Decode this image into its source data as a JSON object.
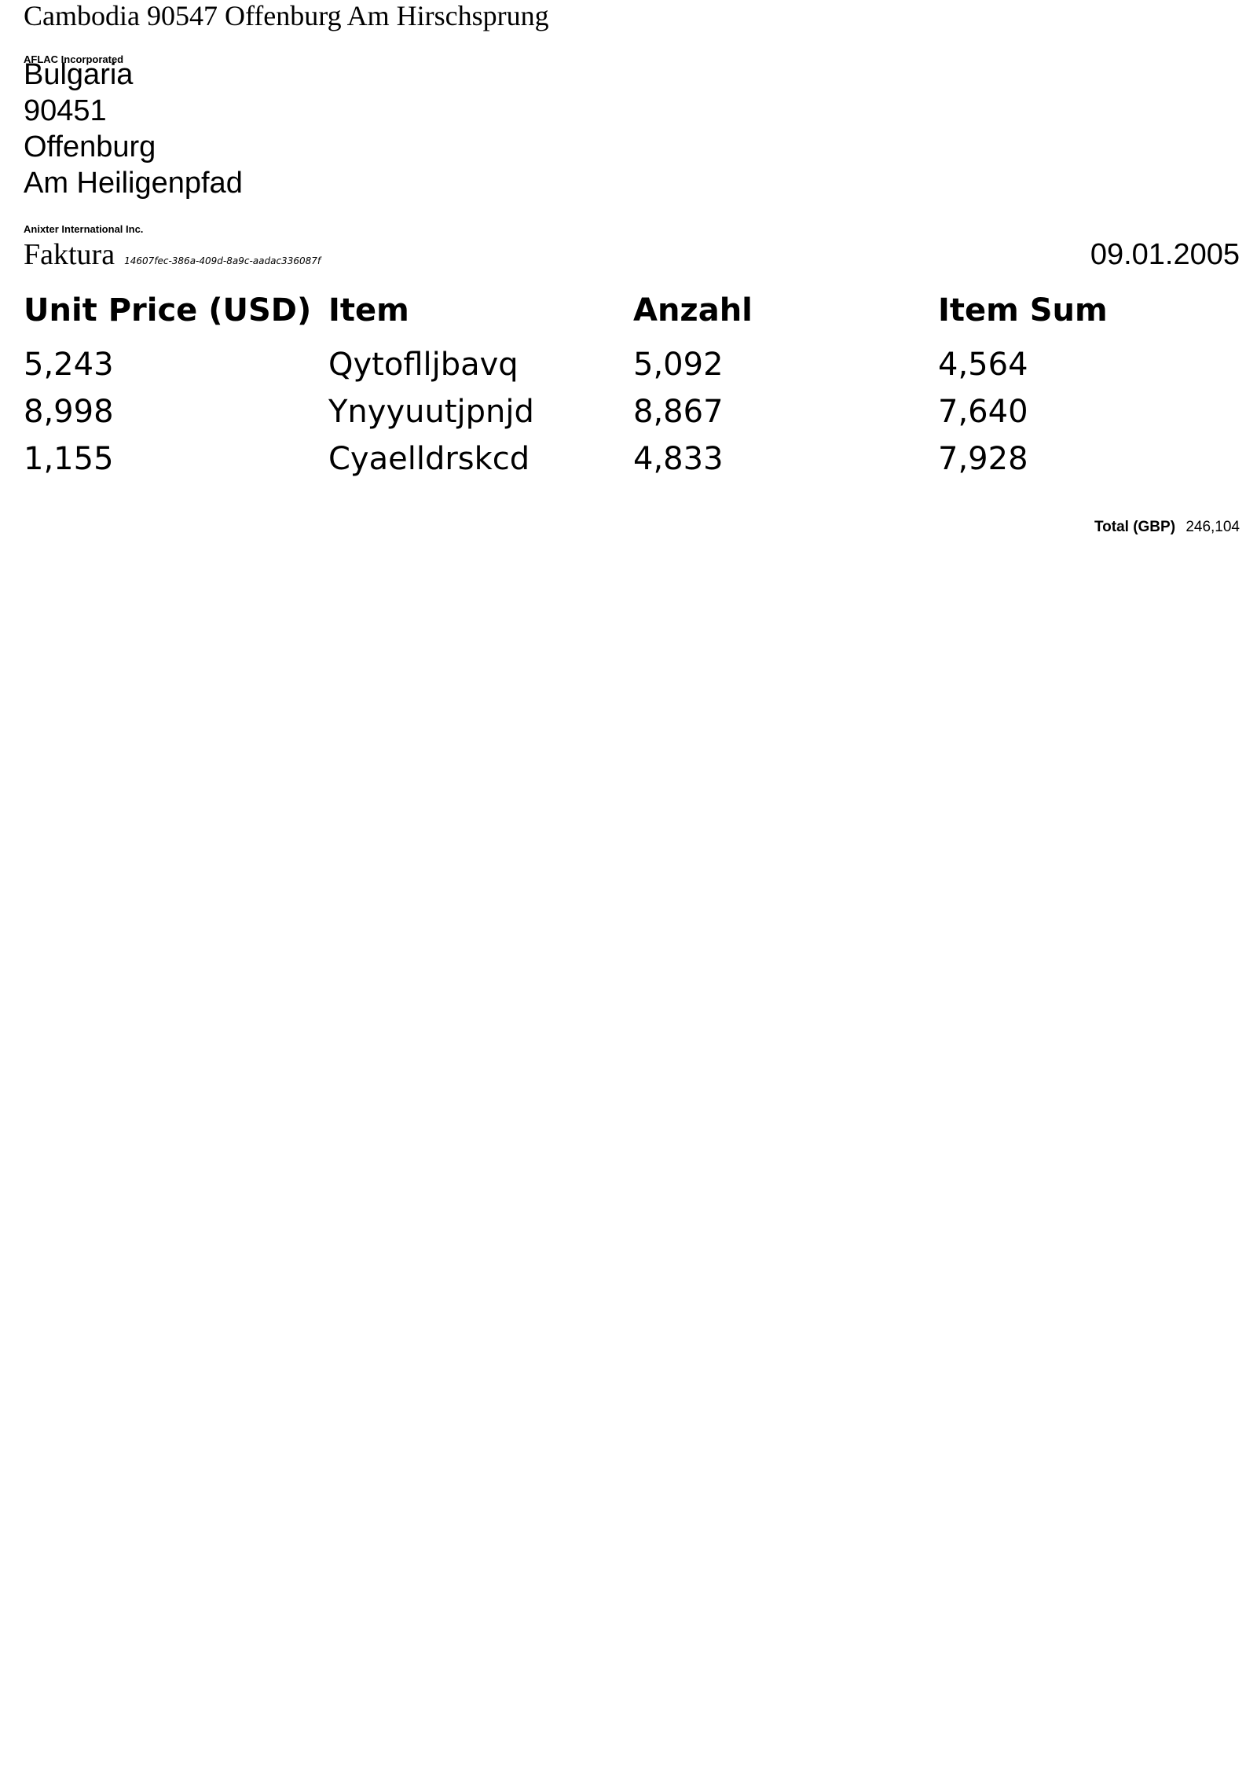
{
  "sender": {
    "address_line": "Cambodia 90547 Offenburg Am Hirschsprung",
    "company": "AFLAC Incorporated"
  },
  "recipient": {
    "country": "Bulgaria",
    "postal_code": "90451",
    "city": "Offenburg",
    "street": "Am Heiligenpfad",
    "company": "Anixter International Inc."
  },
  "document": {
    "title": "Faktura",
    "id": "14607fec-386a-409d-8a9c-aadac336087f",
    "date": "09.01.2005"
  },
  "table": {
    "headers": [
      "Unit Price (USD)",
      "Item",
      "Anzahl",
      "Item Sum"
    ],
    "rows": [
      [
        "5,243",
        "Qytoflljbavq",
        "5,092",
        "4,564"
      ],
      [
        "8,998",
        "Ynyyuutjpnjd",
        "8,867",
        "7,640"
      ],
      [
        "1,155",
        "Cyaelldrskcd",
        "4,833",
        "7,928"
      ]
    ]
  },
  "total": {
    "label": "Total (GBP)",
    "value": "246,104"
  }
}
